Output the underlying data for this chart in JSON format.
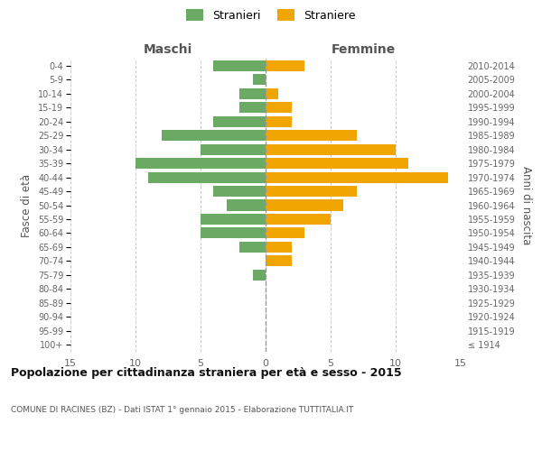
{
  "age_groups": [
    "100+",
    "95-99",
    "90-94",
    "85-89",
    "80-84",
    "75-79",
    "70-74",
    "65-69",
    "60-64",
    "55-59",
    "50-54",
    "45-49",
    "40-44",
    "35-39",
    "30-34",
    "25-29",
    "20-24",
    "15-19",
    "10-14",
    "5-9",
    "0-4"
  ],
  "birth_years": [
    "≤ 1914",
    "1915-1919",
    "1920-1924",
    "1925-1929",
    "1930-1934",
    "1935-1939",
    "1940-1944",
    "1945-1949",
    "1950-1954",
    "1955-1959",
    "1960-1964",
    "1965-1969",
    "1970-1974",
    "1975-1979",
    "1980-1984",
    "1985-1989",
    "1990-1994",
    "1995-1999",
    "2000-2004",
    "2005-2009",
    "2010-2014"
  ],
  "males": [
    0,
    0,
    0,
    0,
    0,
    1,
    0,
    2,
    5,
    5,
    3,
    4,
    9,
    10,
    5,
    8,
    4,
    2,
    2,
    1,
    4
  ],
  "females": [
    0,
    0,
    0,
    0,
    0,
    0,
    2,
    2,
    3,
    5,
    6,
    7,
    14,
    11,
    10,
    7,
    2,
    2,
    1,
    0,
    3
  ],
  "male_color": "#6aaa64",
  "female_color": "#f0a500",
  "xlim": 15,
  "title": "Popolazione per cittadinanza straniera per età e sesso - 2015",
  "subtitle": "COMUNE DI RACINES (BZ) - Dati ISTAT 1° gennaio 2015 - Elaborazione TUTTITALIA.IT",
  "xlabel_left": "Maschi",
  "xlabel_right": "Femmine",
  "ylabel_left": "Fasce di età",
  "ylabel_right": "Anni di nascita",
  "legend_male": "Stranieri",
  "legend_female": "Straniere",
  "bg_color": "#ffffff",
  "grid_color": "#cccccc"
}
